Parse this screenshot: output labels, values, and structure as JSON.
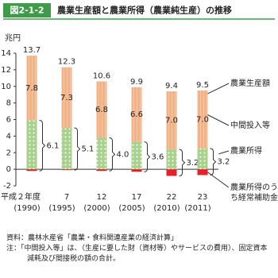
{
  "figure_label": "図2-1-2",
  "chart_data": {
    "type": "stacked-bar",
    "title": "農業生産額と農業所得（農業純生産）の推移",
    "y_unit": "兆円",
    "categories": [
      "平成２年度",
      "7",
      "12",
      "17",
      "22",
      "23"
    ],
    "years": [
      "(1990)",
      "(1995)",
      "(2000)",
      "(2005)",
      "(2010)",
      "(2011)"
    ],
    "ylim": [
      -2,
      14
    ],
    "yticks": [
      -2,
      0,
      2,
      4,
      6,
      8,
      10,
      12,
      14
    ],
    "total": {
      "name": "農業生産額",
      "values": [
        13.7,
        12.3,
        10.6,
        9.9,
        9.4,
        9.5
      ]
    },
    "series": [
      {
        "name": "中間投入等",
        "color": "#f4b183",
        "values": [
          7.8,
          7.3,
          6.8,
          6.6,
          7.0,
          7.0
        ],
        "value_labels": [
          "7.8",
          "7.3",
          "6.8",
          "6.6",
          "7.0",
          "7.0"
        ]
      },
      {
        "name": "農業所得",
        "color": "#a9d18e",
        "values": [
          6.1,
          5.1,
          4.0,
          3.6,
          3.2,
          3.2
        ],
        "value_labels": [
          "6.1",
          "5.1",
          "4.0",
          "3.6",
          "3.2",
          "3.2"
        ]
      },
      {
        "name": "農業所得のうち経常補助金",
        "color": "#e8202a",
        "values": [
          -0.2,
          -0.1,
          -0.2,
          -0.3,
          -0.8,
          -0.7
        ]
      }
    ]
  },
  "notes": [
    "資料：農林水産省「農業・食料関連産業の経済計算」",
    "注：「中間投入等」は、（生産に要した財（資材等）やサービスの費用）、固定資本減耗及び間接税の額の合計。"
  ]
}
